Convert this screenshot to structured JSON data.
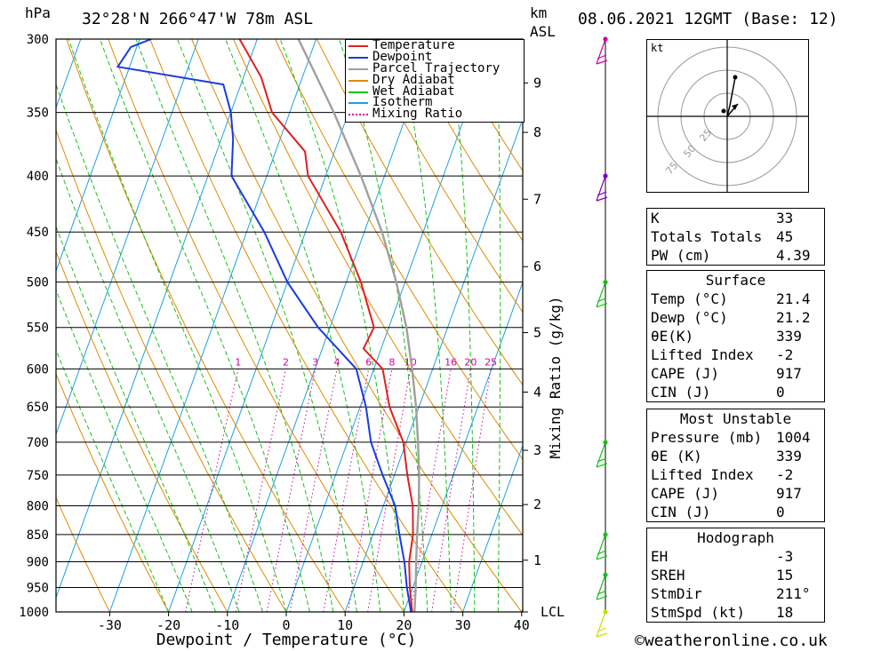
{
  "header": {
    "pressure_unit": "hPa",
    "location": "32°28'N 266°47'W 78m ASL",
    "km_unit": "km",
    "asl": "ASL",
    "datetime": "08.06.2021 12GMT (Base: 12)"
  },
  "chart_data": {
    "type": "skew-t",
    "xlabel": "Dewpoint / Temperature (°C)",
    "ylabel_left": "hPa",
    "ylabel_right": "Mixing Ratio (g/kg)",
    "pressure_ticks": [
      300,
      350,
      400,
      450,
      500,
      550,
      600,
      650,
      700,
      750,
      800,
      850,
      900,
      950,
      1000
    ],
    "temperature_ticks": [
      -30,
      -20,
      -10,
      0,
      10,
      20,
      30,
      40
    ],
    "km_ticks": [
      {
        "label": "9",
        "p": 329
      },
      {
        "label": "8",
        "p": 365
      },
      {
        "label": "7",
        "p": 420
      },
      {
        "label": "6",
        "p": 484
      },
      {
        "label": "5",
        "p": 556
      },
      {
        "label": "4",
        "p": 630
      },
      {
        "label": "3",
        "p": 712
      },
      {
        "label": "2",
        "p": 798
      },
      {
        "label": "1",
        "p": 897
      },
      {
        "label": "LCL",
        "p": 1000
      }
    ],
    "mixing_ratio_labels": [
      "1",
      "2",
      "3",
      "4",
      "6",
      "8",
      "10",
      "16",
      "20",
      "25"
    ],
    "legend": [
      {
        "label": "Temperature",
        "color": "#e02020"
      },
      {
        "label": "Dewpoint",
        "color": "#1a3ce0"
      },
      {
        "label": "Parcel Trajectory",
        "color": "#a0a0a0"
      },
      {
        "label": "Dry Adiabat",
        "color": "#e08a00"
      },
      {
        "label": "Wet Adiabat",
        "color": "#18c018"
      },
      {
        "label": "Isotherm",
        "color": "#1ea0e0"
      },
      {
        "label": "Mixing Ratio",
        "color": "#d000a0"
      }
    ],
    "temperature_profile": [
      {
        "p": 1000,
        "t": 21.4
      },
      {
        "p": 950,
        "t": 19.5
      },
      {
        "p": 900,
        "t": 17.8
      },
      {
        "p": 850,
        "t": 16.8
      },
      {
        "p": 800,
        "t": 15.0
      },
      {
        "p": 750,
        "t": 12.2
      },
      {
        "p": 700,
        "t": 9.5
      },
      {
        "p": 650,
        "t": 5.0
      },
      {
        "p": 600,
        "t": 1.5
      },
      {
        "p": 575,
        "t": -3.0
      },
      {
        "p": 550,
        "t": -2.5
      },
      {
        "p": 500,
        "t": -7.5
      },
      {
        "p": 450,
        "t": -14.0
      },
      {
        "p": 400,
        "t": -23.0
      },
      {
        "p": 380,
        "t": -25.0
      },
      {
        "p": 350,
        "t": -33.0
      },
      {
        "p": 325,
        "t": -37.0
      },
      {
        "p": 300,
        "t": -43.0
      }
    ],
    "dewpoint_profile": [
      {
        "p": 1000,
        "t": 21.2
      },
      {
        "p": 950,
        "t": 19.0
      },
      {
        "p": 900,
        "t": 17.0
      },
      {
        "p": 850,
        "t": 14.5
      },
      {
        "p": 800,
        "t": 12.0
      },
      {
        "p": 750,
        "t": 8.0
      },
      {
        "p": 700,
        "t": 4.0
      },
      {
        "p": 650,
        "t": 1.0
      },
      {
        "p": 600,
        "t": -3.0
      },
      {
        "p": 550,
        "t": -12.0
      },
      {
        "p": 500,
        "t": -20.0
      },
      {
        "p": 450,
        "t": -27.0
      },
      {
        "p": 400,
        "t": -36.0
      },
      {
        "p": 370,
        "t": -38.0
      },
      {
        "p": 350,
        "t": -40.0
      },
      {
        "p": 330,
        "t": -43.0
      },
      {
        "p": 318,
        "t": -62.0
      },
      {
        "p": 305,
        "t": -61.0
      },
      {
        "p": 300,
        "t": -58.0
      }
    ],
    "parcel_profile": [
      {
        "p": 1000,
        "t": 21.8
      },
      {
        "p": 950,
        "t": 20.5
      },
      {
        "p": 900,
        "t": 19.0
      },
      {
        "p": 850,
        "t": 17.5
      },
      {
        "p": 800,
        "t": 16.0
      },
      {
        "p": 750,
        "t": 14.2
      },
      {
        "p": 700,
        "t": 12.0
      },
      {
        "p": 650,
        "t": 9.5
      },
      {
        "p": 600,
        "t": 6.5
      },
      {
        "p": 550,
        "t": 3.0
      },
      {
        "p": 500,
        "t": -1.5
      },
      {
        "p": 450,
        "t": -7.0
      },
      {
        "p": 400,
        "t": -14.0
      },
      {
        "p": 350,
        "t": -22.5
      },
      {
        "p": 300,
        "t": -33.0
      }
    ],
    "wind_levels": [
      {
        "p": 1000,
        "color": "#c8e000"
      },
      {
        "p": 925,
        "color": "#18c018"
      },
      {
        "p": 850,
        "color": "#18c018"
      },
      {
        "p": 700,
        "color": "#18c018"
      },
      {
        "p": 500,
        "color": "#18c018"
      },
      {
        "p": 400,
        "color": "#8000c0"
      },
      {
        "p": 300,
        "color": "#d000a0"
      }
    ],
    "hodograph": {
      "unit": "kt",
      "ring_labels": [
        "25",
        "50",
        "75"
      ]
    }
  },
  "indices": {
    "rows": [
      {
        "label": "K",
        "value": "33"
      },
      {
        "label": "Totals Totals",
        "value": "45"
      },
      {
        "label": "PW (cm)",
        "value": "4.39"
      }
    ]
  },
  "surface": {
    "title": "Surface",
    "rows": [
      {
        "label": "Temp (°C)",
        "value": "21.4"
      },
      {
        "label": "Dewp (°C)",
        "value": "21.2"
      },
      {
        "label": "θE(K)",
        "value": "339"
      },
      {
        "label": "Lifted Index",
        "value": "-2"
      },
      {
        "label": "CAPE (J)",
        "value": "917"
      },
      {
        "label": "CIN (J)",
        "value": "0"
      }
    ]
  },
  "most_unstable": {
    "title": "Most Unstable",
    "rows": [
      {
        "label": "Pressure (mb)",
        "value": "1004"
      },
      {
        "label": "θE (K)",
        "value": "339"
      },
      {
        "label": "Lifted Index",
        "value": "-2"
      },
      {
        "label": "CAPE (J)",
        "value": "917"
      },
      {
        "label": "CIN (J)",
        "value": "0"
      }
    ]
  },
  "hodograph_table": {
    "title": "Hodograph",
    "rows": [
      {
        "label": "EH",
        "value": "-3"
      },
      {
        "label": "SREH",
        "value": "15"
      },
      {
        "label": "StmDir",
        "value": "211°"
      },
      {
        "label": "StmSpd (kt)",
        "value": "18"
      }
    ]
  },
  "footer": {
    "copyright_symbol": "©",
    "site": "weatheronline.co.uk"
  }
}
